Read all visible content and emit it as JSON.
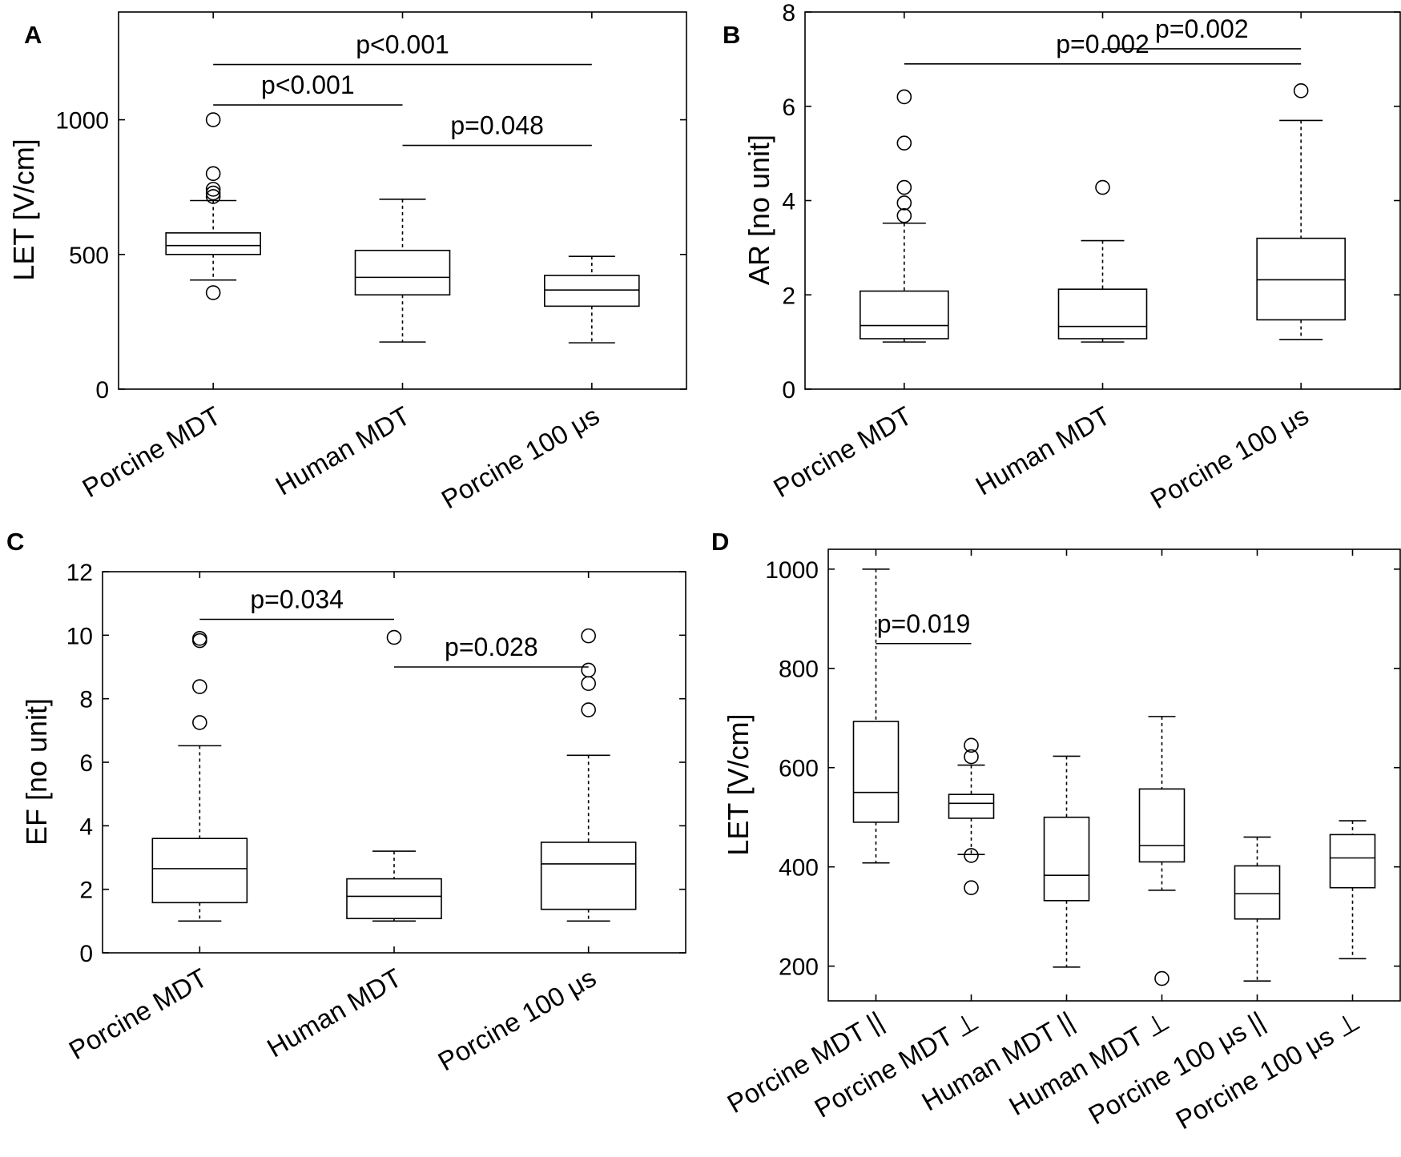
{
  "chart_data": [
    {
      "panel": "A",
      "type": "box",
      "ylabel": "LET [V/cm]",
      "ylim": [
        0,
        1400
      ],
      "yticks": [
        0,
        500,
        1000
      ],
      "categories": [
        "Porcine MDT",
        "Human MDT",
        "Porcine 100 μs"
      ],
      "boxes": [
        {
          "name": "Porcine MDT",
          "whisker_low": 405,
          "q1": 500,
          "median": 533,
          "q3": 580,
          "whisker_high": 700,
          "outliers": [
            358,
            715,
            728,
            742,
            800,
            1000
          ]
        },
        {
          "name": "Human MDT",
          "whisker_low": 175,
          "q1": 350,
          "median": 415,
          "q3": 515,
          "whisker_high": 705,
          "outliers": []
        },
        {
          "name": "Porcine 100 μs",
          "whisker_low": 172,
          "q1": 308,
          "median": 368,
          "q3": 422,
          "whisker_high": 493,
          "outliers": []
        }
      ],
      "significance": [
        {
          "from": 0,
          "to": 2,
          "y": 1205,
          "label": "p<0.001"
        },
        {
          "from": 0,
          "to": 1,
          "y": 1055,
          "label": "p<0.001"
        },
        {
          "from": 1,
          "to": 2,
          "y": 905,
          "label": "p=0.048"
        }
      ]
    },
    {
      "panel": "B",
      "type": "box",
      "ylabel": "AR [no unit]",
      "ylim": [
        0,
        8
      ],
      "yticks": [
        0,
        2,
        4,
        6,
        8
      ],
      "categories": [
        "Porcine MDT",
        "Human MDT",
        "Porcine 100 μs"
      ],
      "boxes": [
        {
          "name": "Porcine MDT",
          "whisker_low": 1.0,
          "q1": 1.07,
          "median": 1.35,
          "q3": 2.08,
          "whisker_high": 3.52,
          "outliers": [
            3.68,
            3.95,
            4.28,
            5.22,
            6.2
          ]
        },
        {
          "name": "Human MDT",
          "whisker_low": 1.0,
          "q1": 1.07,
          "median": 1.33,
          "q3": 2.12,
          "whisker_high": 3.15,
          "outliers": [
            4.28
          ]
        },
        {
          "name": "Porcine 100 μs",
          "whisker_low": 1.05,
          "q1": 1.47,
          "median": 2.32,
          "q3": 3.2,
          "whisker_high": 5.7,
          "outliers": [
            6.33
          ]
        }
      ],
      "significance": [
        {
          "from": 0,
          "to": 2,
          "y": 6.9,
          "label": "p=0.002"
        },
        {
          "from": 1,
          "to": 2,
          "y": 7.22,
          "label": "p=0.002"
        }
      ]
    },
    {
      "panel": "C",
      "type": "box",
      "ylabel": "EF [no unit]",
      "ylim": [
        0,
        12
      ],
      "yticks": [
        0,
        2,
        4,
        6,
        8,
        10,
        12
      ],
      "categories": [
        "Porcine MDT",
        "Human MDT",
        "Porcine 100 μs"
      ],
      "boxes": [
        {
          "name": "Porcine MDT",
          "whisker_low": 1.0,
          "q1": 1.58,
          "median": 2.65,
          "q3": 3.6,
          "whisker_high": 6.52,
          "outliers": [
            7.25,
            8.38,
            9.83,
            9.9
          ]
        },
        {
          "name": "Human MDT",
          "whisker_low": 1.0,
          "q1": 1.08,
          "median": 1.78,
          "q3": 2.33,
          "whisker_high": 3.2,
          "outliers": [
            9.93
          ]
        },
        {
          "name": "Porcine 100 μs",
          "whisker_low": 1.0,
          "q1": 1.37,
          "median": 2.8,
          "q3": 3.48,
          "whisker_high": 6.22,
          "outliers": [
            7.65,
            8.48,
            8.9,
            9.98
          ]
        }
      ],
      "significance": [
        {
          "from": 0,
          "to": 1,
          "y": 10.5,
          "label": "p=0.034"
        },
        {
          "from": 1,
          "to": 2,
          "y": 9.0,
          "label": "p=0.028"
        }
      ]
    },
    {
      "panel": "D",
      "type": "box",
      "ylabel": "LET [V/cm]",
      "ylim": [
        130,
        1040
      ],
      "yticks": [
        200,
        400,
        600,
        800,
        1000
      ],
      "categories": [
        "Porcine MDT ||",
        "Porcine MDT ⊥",
        "Human MDT ||",
        "Human MDT ⊥",
        "Porcine 100 μs ||",
        "Porcine 100 μs ⊥"
      ],
      "boxes": [
        {
          "name": "Porcine MDT ||",
          "whisker_low": 408,
          "q1": 490,
          "median": 550,
          "q3": 693,
          "whisker_high": 1000,
          "outliers": []
        },
        {
          "name": "Porcine MDT ⊥",
          "whisker_low": 425,
          "q1": 498,
          "median": 528,
          "q3": 546,
          "whisker_high": 605,
          "outliers": [
            358,
            423,
            622,
            645
          ]
        },
        {
          "name": "Human MDT ||",
          "whisker_low": 198,
          "q1": 332,
          "median": 383,
          "q3": 500,
          "whisker_high": 623,
          "outliers": []
        },
        {
          "name": "Human MDT ⊥",
          "whisker_low": 353,
          "q1": 410,
          "median": 443,
          "q3": 557,
          "whisker_high": 703,
          "outliers": [
            175
          ]
        },
        {
          "name": "Porcine 100 μs ||",
          "whisker_low": 170,
          "q1": 295,
          "median": 346,
          "q3": 402,
          "whisker_high": 460,
          "outliers": []
        },
        {
          "name": "Porcine 100 μs ⊥",
          "whisker_low": 215,
          "q1": 358,
          "median": 418,
          "q3": 465,
          "whisker_high": 493,
          "outliers": []
        }
      ],
      "significance": [
        {
          "from": 0,
          "to": 1,
          "y": 850,
          "label": "p=0.019"
        }
      ]
    }
  ]
}
